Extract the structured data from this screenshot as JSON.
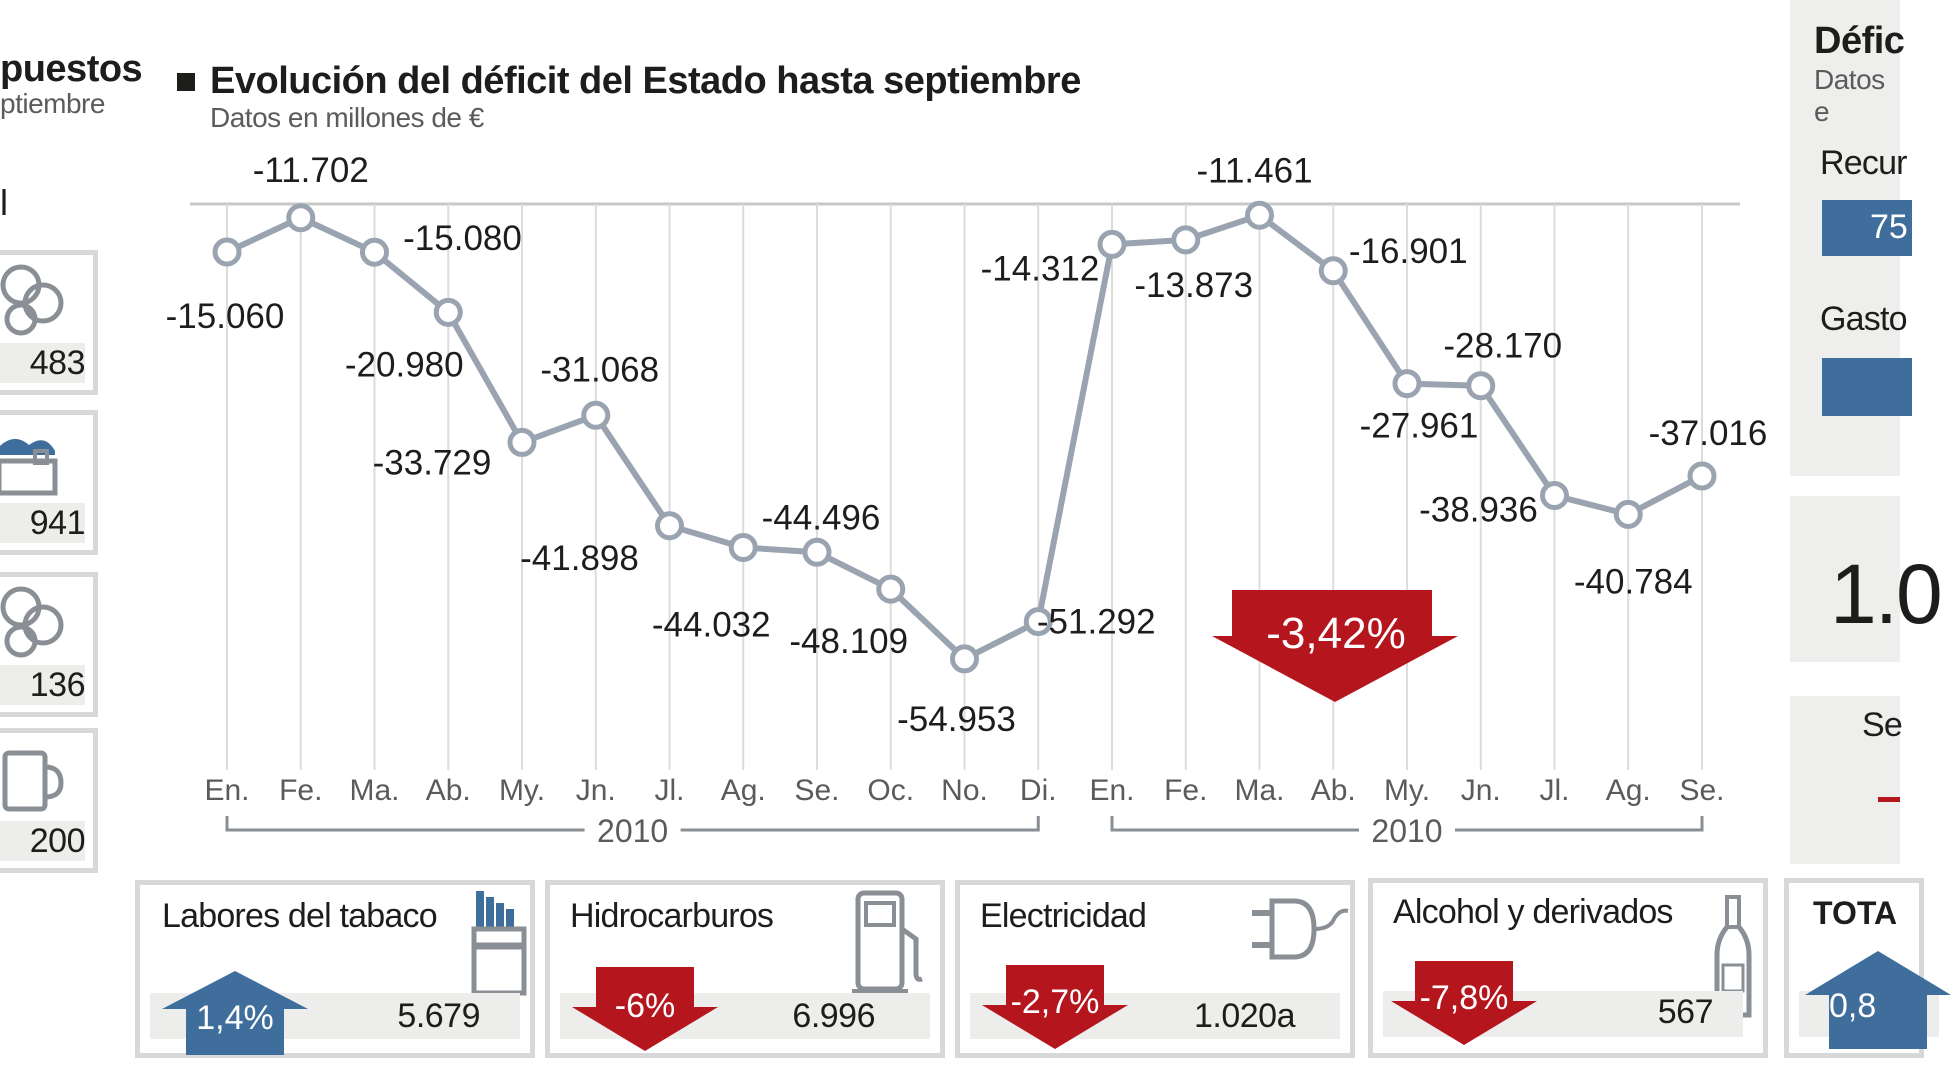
{
  "left_strip": {
    "title_fragment": "puestos",
    "subtitle_fragment": "ptiembre",
    "mark": "l",
    "values": [
      "483",
      "941",
      "136",
      "200"
    ]
  },
  "chart_title": "Evolución del déficit del Estado hasta septiembre",
  "chart_subtitle": "Datos en millones de €",
  "chart_data": {
    "type": "line",
    "title": "Evolución del déficit del Estado hasta septiembre",
    "subtitle": "Datos en millones de €",
    "categories": [
      "En.",
      "Fe.",
      "Ma.",
      "Ab.",
      "My.",
      "Jn.",
      "Jl.",
      "Ag.",
      "Se.",
      "Oc.",
      "No.",
      "Di.",
      "En.",
      "Fe.",
      "Ma.",
      "Ab.",
      "My.",
      "Jn.",
      "Jl.",
      "Ag.",
      "Se."
    ],
    "values": [
      -15060,
      -11702,
      -15080,
      -20980,
      -33729,
      -31068,
      -41898,
      -44032,
      -44496,
      -48109,
      -54953,
      -51292,
      -14312,
      -13873,
      -11461,
      -16901,
      -27961,
      -28170,
      -38936,
      -40784,
      -37016
    ],
    "labels": [
      "-15.060",
      "-11.702",
      "-15.080",
      "-20.980",
      "-33.729",
      "-31.068",
      "-41.898",
      "-44.032",
      "-44.496",
      "-48.109",
      "-54.953",
      "-51.292",
      "-14.312",
      "-13.873",
      "-11.461",
      "-16.901",
      "-27.961",
      "-28.170",
      "-38.936",
      "-40.784",
      "-37.016"
    ],
    "year_groups": [
      "2010",
      "2010"
    ],
    "ylim": [
      -58000,
      -8000
    ],
    "series_color": "#9aa4b1",
    "annotation": "-3,42%",
    "annotation_color": "#b5161e"
  },
  "bottom_cards": [
    {
      "label": "Labores del tabaco",
      "change": "1,4%",
      "direction": "up",
      "value": "5.679",
      "icon": "cigarette-pack-icon"
    },
    {
      "label": "Hidrocarburos",
      "change": "-6%",
      "direction": "down",
      "value": "6.996",
      "icon": "fuel-pump-icon"
    },
    {
      "label": "Electricidad",
      "change": "-2,7%",
      "direction": "down",
      "value": "1.020a",
      "icon": "plug-icon"
    },
    {
      "label": "Alcohol y derivados",
      "change": "-7,8%",
      "direction": "down",
      "value": "567",
      "icon": "bottle-icon"
    }
  ],
  "total_card": {
    "label": "TOTA",
    "change": "0,8"
  },
  "right_strip": {
    "title_fragment": "Défic",
    "subtitle_fragment": "Datos e",
    "item1": "Recur",
    "item1_value": "75",
    "item2": "Gasto",
    "big_value": "1.0",
    "item3": "Se"
  },
  "colors": {
    "up": "#3f6e9c",
    "down": "#b5161e",
    "card_border": "#d6d8da",
    "line": "#9aa4b1"
  }
}
